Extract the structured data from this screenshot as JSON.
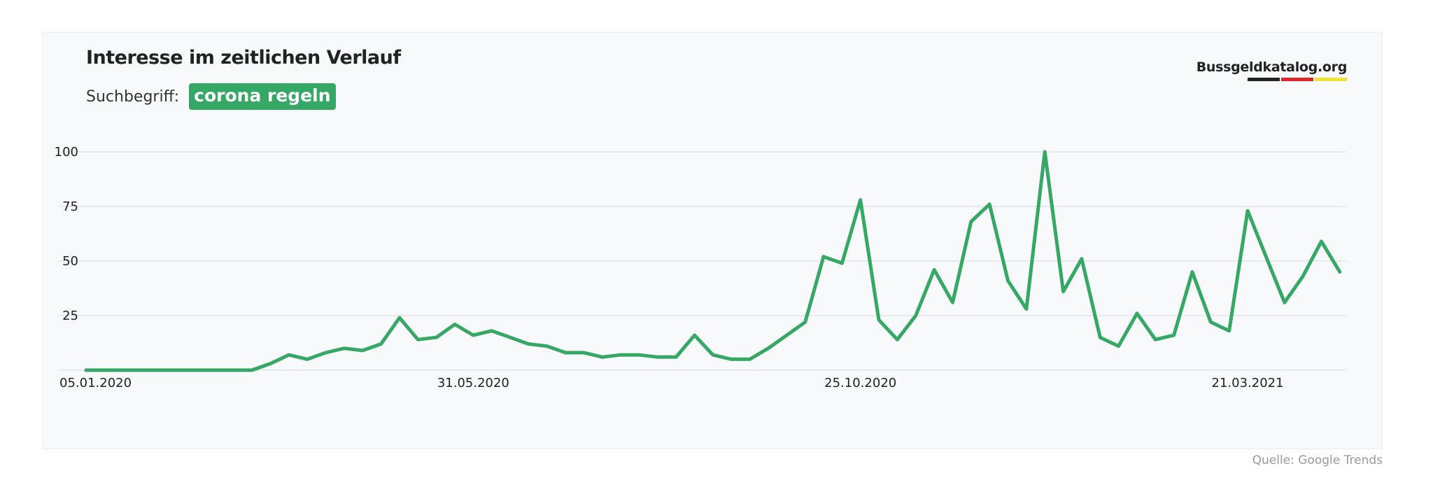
{
  "header": {
    "title": "Interesse im zeitlichen Verlauf",
    "search_label": "Suchbegriff:",
    "search_term": "corona regeln"
  },
  "brand": {
    "name": "Bussgeldkatalog.org",
    "bar_colors": [
      "#222222",
      "#e0242a",
      "#f2e234"
    ]
  },
  "source": "Quelle: Google Trends",
  "colors": {
    "accent": "#35a865",
    "line": "#35a865",
    "grid": "#d9dbdf"
  },
  "chart_data": {
    "type": "line",
    "title": "Interesse im zeitlichen Verlauf",
    "xlabel": "",
    "ylabel": "",
    "ylim": [
      0,
      100
    ],
    "yticks": [
      25,
      50,
      75,
      100
    ],
    "grid": true,
    "x_tick_labels": [
      {
        "label": "05.01.2020",
        "index": 0
      },
      {
        "label": "31.05.2020",
        "index": 21
      },
      {
        "label": "25.10.2020",
        "index": 42
      },
      {
        "label": "21.03.2021",
        "index": 63
      }
    ],
    "x": [
      "05.01.2020",
      "12.01.2020",
      "19.01.2020",
      "26.01.2020",
      "02.02.2020",
      "09.02.2020",
      "16.02.2020",
      "23.02.2020",
      "01.03.2020",
      "08.03.2020",
      "15.03.2020",
      "22.03.2020",
      "29.03.2020",
      "05.04.2020",
      "12.04.2020",
      "19.04.2020",
      "26.04.2020",
      "03.05.2020",
      "10.05.2020",
      "17.05.2020",
      "24.05.2020",
      "31.05.2020",
      "07.06.2020",
      "14.06.2020",
      "21.06.2020",
      "28.06.2020",
      "05.07.2020",
      "12.07.2020",
      "19.07.2020",
      "26.07.2020",
      "02.08.2020",
      "09.08.2020",
      "16.08.2020",
      "23.08.2020",
      "30.08.2020",
      "06.09.2020",
      "13.09.2020",
      "20.09.2020",
      "27.09.2020",
      "04.10.2020",
      "11.10.2020",
      "18.10.2020",
      "25.10.2020",
      "01.11.2020",
      "08.11.2020",
      "15.11.2020",
      "22.11.2020",
      "29.11.2020",
      "06.12.2020",
      "13.12.2020",
      "20.12.2020",
      "27.12.2020",
      "03.01.2021",
      "10.01.2021",
      "17.01.2021",
      "24.01.2021",
      "31.01.2021",
      "07.02.2021",
      "14.02.2021",
      "21.02.2021",
      "28.02.2021",
      "07.03.2021",
      "14.03.2021",
      "21.03.2021",
      "28.03.2021",
      "04.04.2021",
      "11.04.2021",
      "18.04.2021",
      "25.04.2021"
    ],
    "series": [
      {
        "values": [
          0,
          0,
          0,
          0,
          0,
          0,
          0,
          0,
          0,
          0,
          3,
          7,
          5,
          8,
          10,
          9,
          12,
          24,
          14,
          15,
          21,
          16,
          18,
          15,
          12,
          11,
          8,
          8,
          6,
          7,
          7,
          6,
          6,
          16,
          7,
          5,
          5,
          10,
          16,
          22,
          52,
          49,
          78,
          23,
          14,
          25,
          46,
          31,
          68,
          76,
          41,
          28,
          100,
          36,
          51,
          15,
          11,
          26,
          14,
          16,
          45,
          22,
          18,
          73,
          52,
          31,
          43,
          59,
          45
        ]
      }
    ]
  }
}
